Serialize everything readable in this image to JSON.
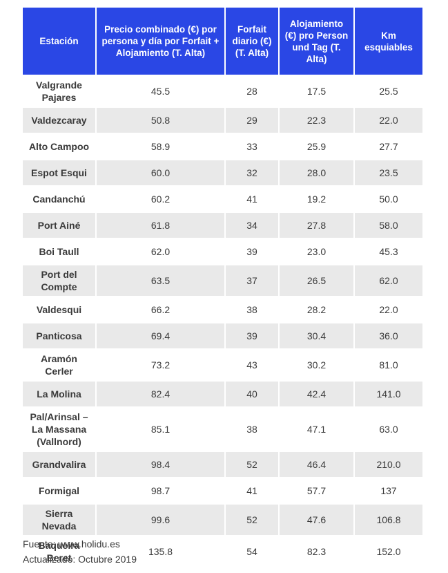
{
  "headers": [
    "Estación",
    "Precio combinado (€) por persona y día por Forfait + Alojamiento (T. Alta)",
    "Forfait diario (€) (T. Alta)",
    "Alojamiento (€) pro Person und Tag  (T. Alta)",
    "Km esquiables"
  ],
  "rows": [
    {
      "station": "Valgrande Pajares",
      "combined": "45.5",
      "forfait": "28",
      "lodging": "17.5",
      "km": "25.5"
    },
    {
      "station": "Valdezcaray",
      "combined": "50.8",
      "forfait": "29",
      "lodging": "22.3",
      "km": "22.0"
    },
    {
      "station": "Alto Campoo",
      "combined": "58.9",
      "forfait": "33",
      "lodging": "25.9",
      "km": "27.7"
    },
    {
      "station": "Espot Esqui",
      "combined": "60.0",
      "forfait": "32",
      "lodging": "28.0",
      "km": "23.5"
    },
    {
      "station": "Candanchú",
      "combined": "60.2",
      "forfait": "41",
      "lodging": "19.2",
      "km": "50.0"
    },
    {
      "station": "Port Ainé",
      "combined": "61.8",
      "forfait": "34",
      "lodging": "27.8",
      "km": "58.0"
    },
    {
      "station": "Boi Taull",
      "combined": "62.0",
      "forfait": "39",
      "lodging": "23.0",
      "km": "45.3"
    },
    {
      "station": "Port del Compte",
      "combined": "63.5",
      "forfait": "37",
      "lodging": "26.5",
      "km": "62.0"
    },
    {
      "station": "Valdesqui",
      "combined": "66.2",
      "forfait": "38",
      "lodging": "28.2",
      "km": "22.0"
    },
    {
      "station": "Panticosa",
      "combined": "69.4",
      "forfait": "39",
      "lodging": "30.4",
      "km": "36.0"
    },
    {
      "station": "Aramón Cerler",
      "combined": "73.2",
      "forfait": "43",
      "lodging": "30.2",
      "km": "81.0"
    },
    {
      "station": "La Molina",
      "combined": "82.4",
      "forfait": "40",
      "lodging": "42.4",
      "km": "141.0"
    },
    {
      "station": "Pal/Arinsal – La Massana (Vallnord)",
      "combined": "85.1",
      "forfait": "38",
      "lodging": "47.1",
      "km": "63.0"
    },
    {
      "station": "Grandvalira",
      "combined": "98.4",
      "forfait": "52",
      "lodging": "46.4",
      "km": "210.0"
    },
    {
      "station": "Formigal",
      "combined": "98.7",
      "forfait": "41",
      "lodging": "57.7",
      "km": "137"
    },
    {
      "station": "Sierra Nevada",
      "combined": "99.6",
      "forfait": "52",
      "lodging": "47.6",
      "km": "106.8"
    },
    {
      "station": "Baqueira Beret",
      "combined": "135.8",
      "forfait": "54",
      "lodging": "82.3",
      "km": "152.0"
    }
  ],
  "footer": {
    "source": "Fuente: www.holidu.es",
    "updated": "Actualizado: Octubre 2019"
  },
  "colors": {
    "header_bg": "#2a47e5",
    "header_text": "#ffffff",
    "stripe": "#e9e9e9"
  }
}
